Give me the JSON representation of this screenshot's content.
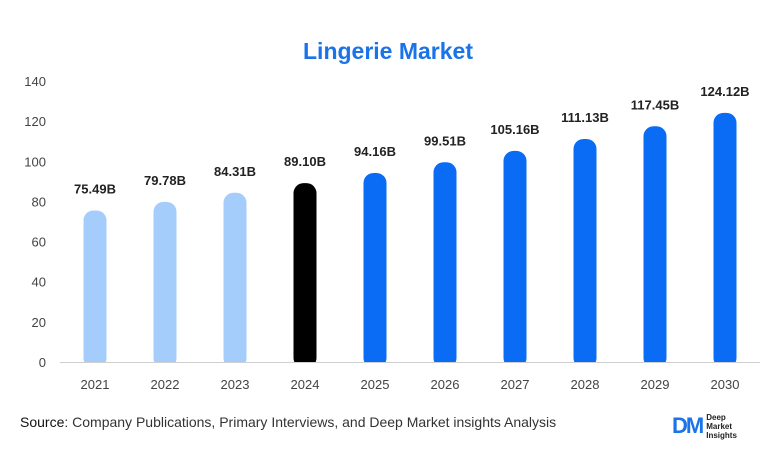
{
  "title": "Lingerie Market",
  "source_prefix": "Source",
  "source_text": ": Company Publications, Primary Interviews, and Deep Market insights Analysis",
  "logo": {
    "mark": "DM",
    "line1": "Deep",
    "line2": "Market",
    "line3": "Insights"
  },
  "colors": {
    "historical": "#a4cdfb",
    "current": "#000000",
    "forecast": "#0a6cf5",
    "title": "#1a73e8"
  },
  "chart_data": {
    "type": "bar",
    "title": "Lingerie Market",
    "xlabel": "",
    "ylabel": "",
    "ylim": [
      0,
      140
    ],
    "yticks": [
      0,
      20,
      40,
      60,
      80,
      100,
      120,
      140
    ],
    "grid": false,
    "categories": [
      "2021",
      "2022",
      "2023",
      "2024",
      "2025",
      "2026",
      "2027",
      "2028",
      "2029",
      "2030"
    ],
    "values": [
      75.49,
      79.78,
      84.31,
      89.1,
      94.16,
      99.51,
      105.16,
      111.13,
      117.45,
      124.12
    ],
    "labels": [
      "75.49B",
      "79.78B",
      "84.31B",
      "89.10B",
      "94.16B",
      "99.51B",
      "105.16B",
      "111.13B",
      "117.45B",
      "124.12B"
    ],
    "bar_color_keys": [
      "historical",
      "historical",
      "historical",
      "current",
      "forecast",
      "forecast",
      "forecast",
      "forecast",
      "forecast",
      "forecast"
    ]
  }
}
